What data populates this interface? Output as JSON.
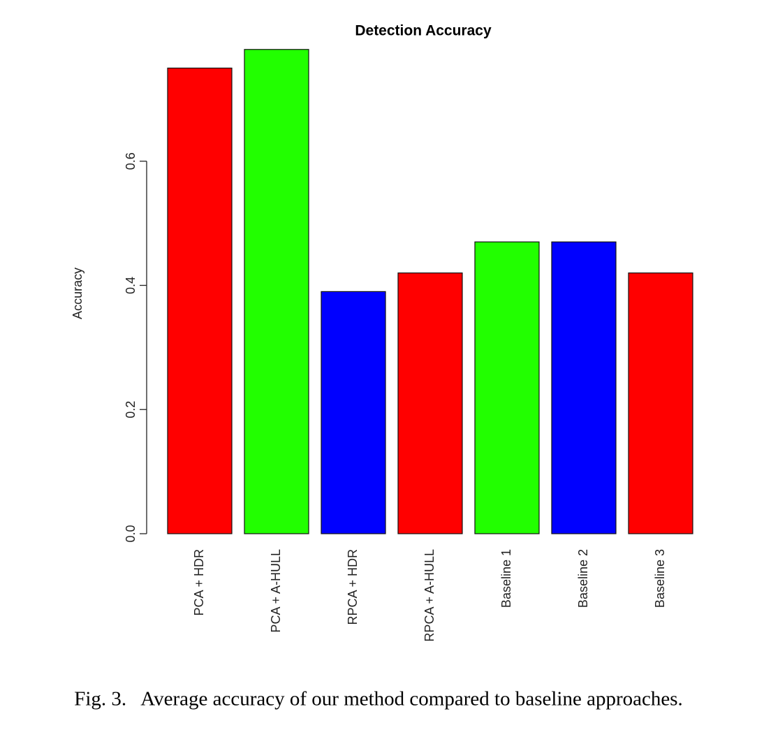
{
  "chart_data": {
    "type": "bar",
    "title": "Detection Accuracy",
    "y_label": "Accuracy",
    "categories": [
      "PCA + HDR",
      "PCA + A-HULL",
      "RPCA + HDR",
      "RPCA + A-HULL",
      "Baseline 1",
      "Baseline 2",
      "Baseline 3"
    ],
    "values": [
      0.75,
      0.78,
      0.39,
      0.42,
      0.47,
      0.47,
      0.42
    ],
    "colors": [
      "#ff0000",
      "#22ff00",
      "#0000ff",
      "#ff0000",
      "#22ff00",
      "#0000ff",
      "#ff0000"
    ],
    "ylim": [
      0,
      0.8
    ],
    "yticks": [
      {
        "value": 0,
        "label": "0.0"
      },
      0.2,
      0.4,
      0.6
    ],
    "grid": false
  },
  "caption": "Fig. 3.   Average accuracy of our method compared to baseline approaches."
}
